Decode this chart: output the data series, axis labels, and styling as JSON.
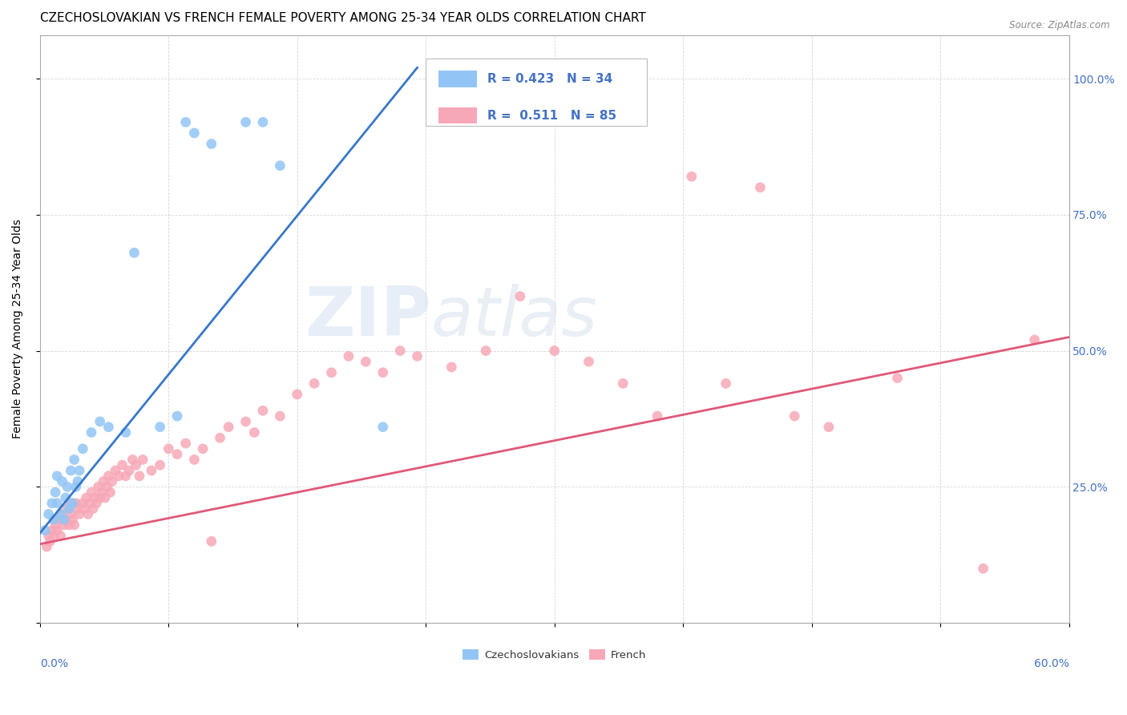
{
  "title": "CZECHOSLOVAKIAN VS FRENCH FEMALE POVERTY AMONG 25-34 YEAR OLDS CORRELATION CHART",
  "source": "Source: ZipAtlas.com",
  "ylabel": "Female Poverty Among 25-34 Year Olds",
  "ytick_values": [
    0.0,
    0.25,
    0.5,
    0.75,
    1.0
  ],
  "ytick_labels_right": [
    "",
    "25.0%",
    "50.0%",
    "75.0%",
    "100.0%"
  ],
  "xmin": 0.0,
  "xmax": 0.6,
  "ymin": 0.0,
  "ymax": 1.08,
  "czech_color": "#92c5f5",
  "french_color": "#f7a8b8",
  "czech_line_color": "#3878c8",
  "french_line_color": "#e05878",
  "watermark_zip": "ZIP",
  "watermark_atlas": "atlas",
  "title_fontsize": 11,
  "axis_label_fontsize": 10,
  "tick_fontsize": 10,
  "czech_line_x0": 0.0,
  "czech_line_y0": 0.165,
  "czech_line_x1": 0.22,
  "czech_line_y1": 1.02,
  "french_line_x0": 0.0,
  "french_line_y0": 0.145,
  "french_line_x1": 0.6,
  "french_line_y1": 0.525,
  "czech_scatter_x": [
    0.003,
    0.005,
    0.007,
    0.008,
    0.009,
    0.01,
    0.01,
    0.012,
    0.013,
    0.014,
    0.015,
    0.016,
    0.017,
    0.018,
    0.019,
    0.02,
    0.021,
    0.022,
    0.023,
    0.025,
    0.03,
    0.035,
    0.04,
    0.05,
    0.055,
    0.07,
    0.08,
    0.085,
    0.09,
    0.1,
    0.12,
    0.13,
    0.14,
    0.2
  ],
  "czech_scatter_y": [
    0.17,
    0.2,
    0.22,
    0.19,
    0.24,
    0.22,
    0.27,
    0.2,
    0.26,
    0.19,
    0.23,
    0.25,
    0.21,
    0.28,
    0.22,
    0.3,
    0.25,
    0.26,
    0.28,
    0.32,
    0.35,
    0.37,
    0.36,
    0.35,
    0.68,
    0.36,
    0.38,
    0.92,
    0.9,
    0.88,
    0.92,
    0.92,
    0.84,
    0.36
  ],
  "french_scatter_x": [
    0.004,
    0.005,
    0.006,
    0.007,
    0.008,
    0.009,
    0.01,
    0.011,
    0.012,
    0.013,
    0.014,
    0.015,
    0.016,
    0.017,
    0.018,
    0.018,
    0.019,
    0.02,
    0.021,
    0.022,
    0.023,
    0.025,
    0.026,
    0.027,
    0.028,
    0.029,
    0.03,
    0.031,
    0.032,
    0.033,
    0.034,
    0.035,
    0.036,
    0.037,
    0.038,
    0.039,
    0.04,
    0.041,
    0.042,
    0.044,
    0.046,
    0.048,
    0.05,
    0.052,
    0.054,
    0.056,
    0.058,
    0.06,
    0.065,
    0.07,
    0.075,
    0.08,
    0.085,
    0.09,
    0.095,
    0.1,
    0.105,
    0.11,
    0.12,
    0.125,
    0.13,
    0.14,
    0.15,
    0.16,
    0.17,
    0.18,
    0.19,
    0.2,
    0.21,
    0.22,
    0.24,
    0.26,
    0.28,
    0.3,
    0.32,
    0.34,
    0.36,
    0.38,
    0.4,
    0.42,
    0.44,
    0.46,
    0.5,
    0.55,
    0.58
  ],
  "french_scatter_y": [
    0.14,
    0.16,
    0.15,
    0.17,
    0.16,
    0.18,
    0.17,
    0.19,
    0.16,
    0.2,
    0.18,
    0.19,
    0.21,
    0.18,
    0.2,
    0.22,
    0.19,
    0.18,
    0.22,
    0.21,
    0.2,
    0.22,
    0.21,
    0.23,
    0.2,
    0.22,
    0.24,
    0.21,
    0.23,
    0.22,
    0.25,
    0.23,
    0.24,
    0.26,
    0.23,
    0.25,
    0.27,
    0.24,
    0.26,
    0.28,
    0.27,
    0.29,
    0.27,
    0.28,
    0.3,
    0.29,
    0.27,
    0.3,
    0.28,
    0.29,
    0.32,
    0.31,
    0.33,
    0.3,
    0.32,
    0.15,
    0.34,
    0.36,
    0.37,
    0.35,
    0.39,
    0.38,
    0.42,
    0.44,
    0.46,
    0.49,
    0.48,
    0.46,
    0.5,
    0.49,
    0.47,
    0.5,
    0.6,
    0.5,
    0.48,
    0.44,
    0.38,
    0.82,
    0.44,
    0.8,
    0.38,
    0.36,
    0.45,
    0.1,
    0.52
  ]
}
